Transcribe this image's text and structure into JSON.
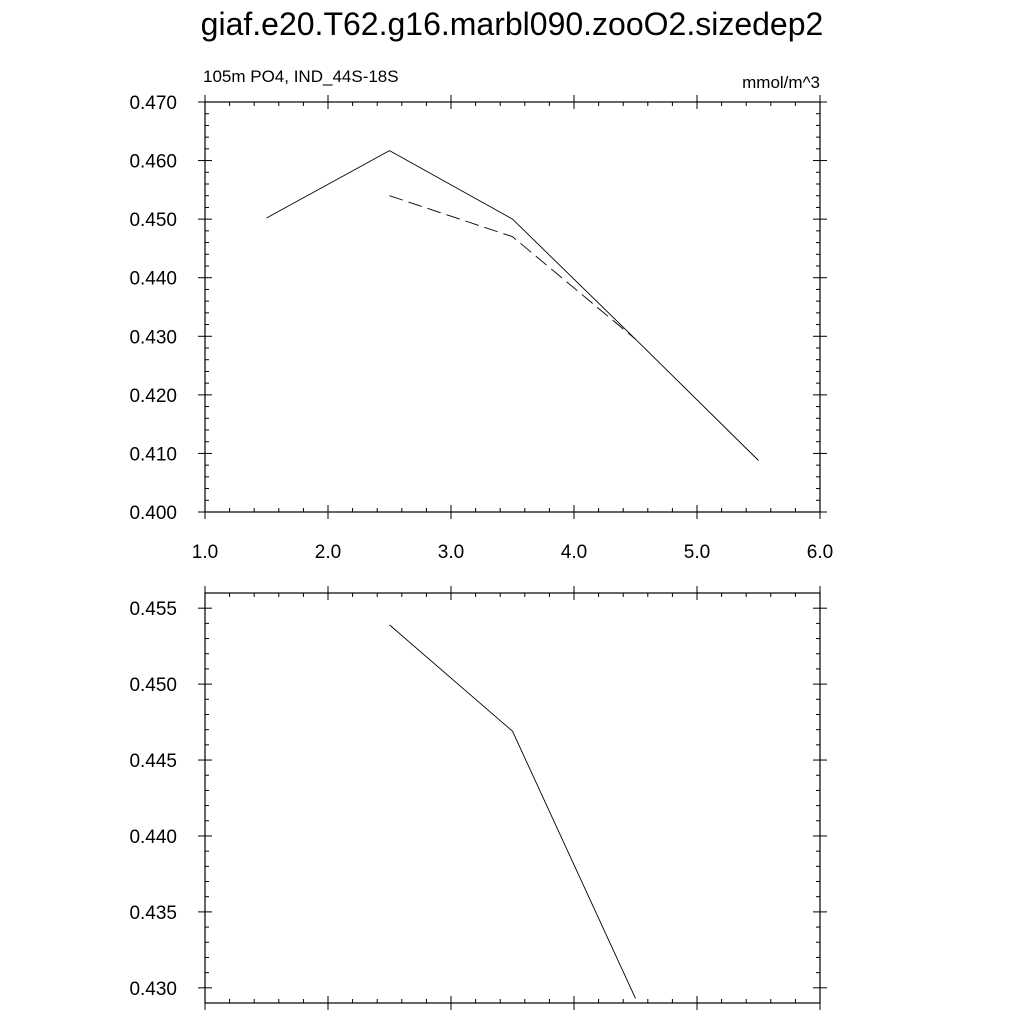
{
  "title": "giaf.e20.T62.g16.marbl090.zooO2.sizedep2",
  "chart_data": [
    {
      "type": "line",
      "left_label": "105m PO4, IND_44S-18S",
      "right_label": "mmol/m^3",
      "xlim": [
        1.0,
        6.0
      ],
      "ylim": [
        0.4,
        0.47
      ],
      "xticks": [
        "1.0",
        "2.0",
        "3.0",
        "4.0",
        "5.0",
        "6.0"
      ],
      "yticks": [
        "0.400",
        "0.410",
        "0.420",
        "0.430",
        "0.440",
        "0.450",
        "0.460",
        "0.470"
      ],
      "series": [
        {
          "style": "solid",
          "color": "#000000",
          "x": [
            1.5,
            2.5,
            3.5,
            4.5,
            5.5
          ],
          "y": [
            0.4502,
            0.4617,
            0.45,
            0.4295,
            0.4088
          ]
        },
        {
          "style": "dashed",
          "color": "#000000",
          "x": [
            2.5,
            3.5,
            4.5
          ],
          "y": [
            0.454,
            0.447,
            0.4295
          ]
        }
      ]
    },
    {
      "type": "line",
      "xlim": [
        1.0,
        6.0
      ],
      "ylim": [
        0.429,
        0.456
      ],
      "xticks": [],
      "yticks": [
        "0.430",
        "0.435",
        "0.440",
        "0.445",
        "0.450",
        "0.455"
      ],
      "series": [
        {
          "style": "solid",
          "color": "#000000",
          "x": [
            2.5,
            3.5,
            4.5
          ],
          "y": [
            0.4539,
            0.4469,
            0.4293
          ]
        }
      ]
    }
  ]
}
